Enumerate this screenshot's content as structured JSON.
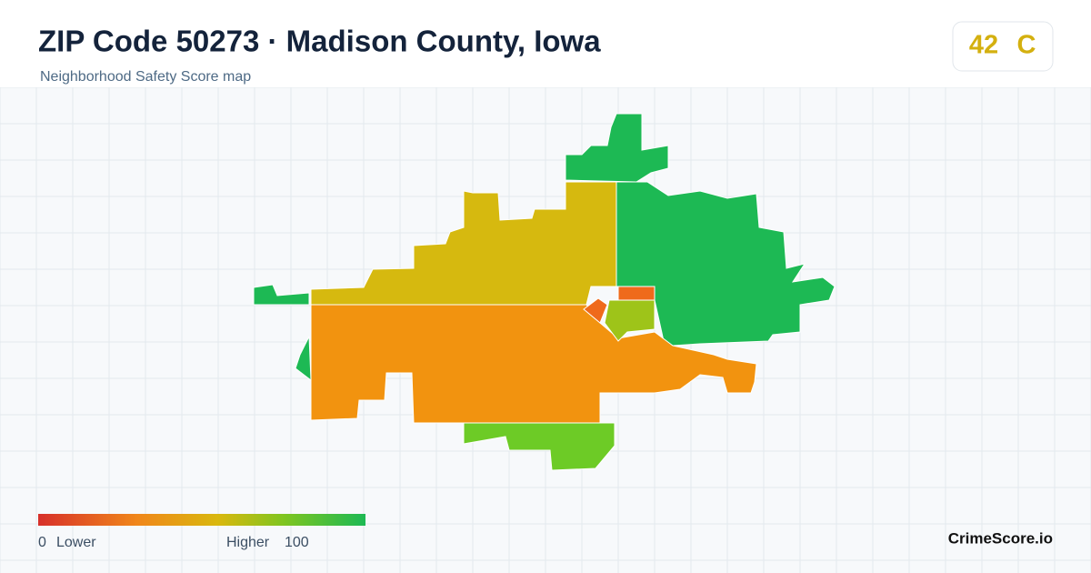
{
  "header": {
    "title": "ZIP Code 50273 · Madison County, Iowa",
    "subtitle": "Neighborhood Safety Score map"
  },
  "badge": {
    "score": "42",
    "grade": "C"
  },
  "legend": {
    "min": "0",
    "min_label": "Lower",
    "max_label": "Higher",
    "max": "100"
  },
  "brand": "CrimeScore.io"
}
